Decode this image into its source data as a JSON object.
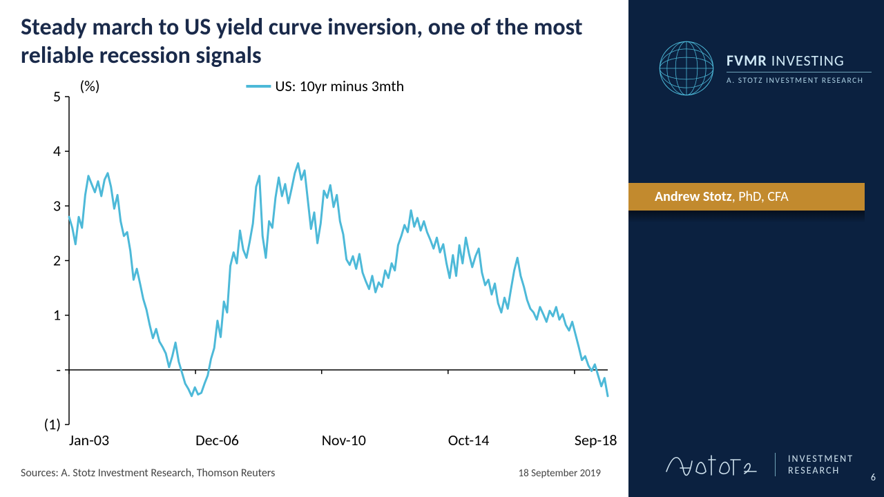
{
  "title": "Steady march to US yield curve inversion, one of the most reliable recession signals",
  "chart": {
    "type": "line",
    "y_axis_label": "(%)",
    "legend_label": "US: 10yr minus 3mth",
    "line_color": "#4db9d8",
    "line_width": 3,
    "axis_color": "#000000",
    "background_color": "#ffffff",
    "ylim": [
      -1,
      5
    ],
    "y_ticks": [
      {
        "value": -1,
        "label": "(1)"
      },
      {
        "value": 0,
        "label": "-"
      },
      {
        "value": 1,
        "label": "1"
      },
      {
        "value": 2,
        "label": "2"
      },
      {
        "value": 3,
        "label": "3"
      },
      {
        "value": 4,
        "label": "4"
      },
      {
        "value": 5,
        "label": "5"
      }
    ],
    "x_domain": [
      2003.0,
      2019.7
    ],
    "x_ticks": [
      {
        "value": 2003.0,
        "label": "Jan-03"
      },
      {
        "value": 2006.92,
        "label": "Dec-06"
      },
      {
        "value": 2010.83,
        "label": "Nov-10"
      },
      {
        "value": 2014.75,
        "label": "Oct-14"
      },
      {
        "value": 2018.67,
        "label": "Sep-18"
      }
    ],
    "series": [
      {
        "x": 2003.0,
        "y": 2.8
      },
      {
        "x": 2003.1,
        "y": 2.6
      },
      {
        "x": 2003.2,
        "y": 2.3
      },
      {
        "x": 2003.3,
        "y": 2.8
      },
      {
        "x": 2003.4,
        "y": 2.6
      },
      {
        "x": 2003.5,
        "y": 3.2
      },
      {
        "x": 2003.6,
        "y": 3.55
      },
      {
        "x": 2003.7,
        "y": 3.4
      },
      {
        "x": 2003.8,
        "y": 3.25
      },
      {
        "x": 2003.9,
        "y": 3.45
      },
      {
        "x": 2004.0,
        "y": 3.18
      },
      {
        "x": 2004.1,
        "y": 3.48
      },
      {
        "x": 2004.2,
        "y": 3.6
      },
      {
        "x": 2004.3,
        "y": 3.35
      },
      {
        "x": 2004.4,
        "y": 2.95
      },
      {
        "x": 2004.5,
        "y": 3.2
      },
      {
        "x": 2004.6,
        "y": 2.72
      },
      {
        "x": 2004.7,
        "y": 2.45
      },
      {
        "x": 2004.8,
        "y": 2.52
      },
      {
        "x": 2004.9,
        "y": 2.18
      },
      {
        "x": 2005.0,
        "y": 1.65
      },
      {
        "x": 2005.1,
        "y": 1.85
      },
      {
        "x": 2005.2,
        "y": 1.58
      },
      {
        "x": 2005.3,
        "y": 1.3
      },
      {
        "x": 2005.4,
        "y": 1.1
      },
      {
        "x": 2005.5,
        "y": 0.82
      },
      {
        "x": 2005.6,
        "y": 0.58
      },
      {
        "x": 2005.7,
        "y": 0.75
      },
      {
        "x": 2005.8,
        "y": 0.52
      },
      {
        "x": 2005.9,
        "y": 0.42
      },
      {
        "x": 2006.0,
        "y": 0.3
      },
      {
        "x": 2006.1,
        "y": 0.05
      },
      {
        "x": 2006.2,
        "y": 0.25
      },
      {
        "x": 2006.3,
        "y": 0.5
      },
      {
        "x": 2006.4,
        "y": 0.15
      },
      {
        "x": 2006.5,
        "y": -0.05
      },
      {
        "x": 2006.6,
        "y": -0.25
      },
      {
        "x": 2006.7,
        "y": -0.35
      },
      {
        "x": 2006.8,
        "y": -0.48
      },
      {
        "x": 2006.9,
        "y": -0.32
      },
      {
        "x": 2007.0,
        "y": -0.45
      },
      {
        "x": 2007.1,
        "y": -0.42
      },
      {
        "x": 2007.2,
        "y": -0.25
      },
      {
        "x": 2007.3,
        "y": -0.1
      },
      {
        "x": 2007.4,
        "y": 0.2
      },
      {
        "x": 2007.5,
        "y": 0.4
      },
      {
        "x": 2007.6,
        "y": 0.9
      },
      {
        "x": 2007.7,
        "y": 0.6
      },
      {
        "x": 2007.8,
        "y": 1.25
      },
      {
        "x": 2007.9,
        "y": 1.05
      },
      {
        "x": 2008.0,
        "y": 1.9
      },
      {
        "x": 2008.1,
        "y": 2.15
      },
      {
        "x": 2008.2,
        "y": 1.95
      },
      {
        "x": 2008.3,
        "y": 2.55
      },
      {
        "x": 2008.4,
        "y": 2.2
      },
      {
        "x": 2008.5,
        "y": 2.05
      },
      {
        "x": 2008.6,
        "y": 2.35
      },
      {
        "x": 2008.7,
        "y": 2.68
      },
      {
        "x": 2008.8,
        "y": 3.35
      },
      {
        "x": 2008.9,
        "y": 3.55
      },
      {
        "x": 2009.0,
        "y": 2.45
      },
      {
        "x": 2009.1,
        "y": 2.05
      },
      {
        "x": 2009.2,
        "y": 2.72
      },
      {
        "x": 2009.3,
        "y": 2.6
      },
      {
        "x": 2009.4,
        "y": 3.15
      },
      {
        "x": 2009.5,
        "y": 3.52
      },
      {
        "x": 2009.6,
        "y": 3.18
      },
      {
        "x": 2009.7,
        "y": 3.4
      },
      {
        "x": 2009.8,
        "y": 3.05
      },
      {
        "x": 2009.9,
        "y": 3.32
      },
      {
        "x": 2010.0,
        "y": 3.6
      },
      {
        "x": 2010.1,
        "y": 3.78
      },
      {
        "x": 2010.2,
        "y": 3.48
      },
      {
        "x": 2010.3,
        "y": 3.65
      },
      {
        "x": 2010.4,
        "y": 3.12
      },
      {
        "x": 2010.5,
        "y": 2.58
      },
      {
        "x": 2010.6,
        "y": 2.88
      },
      {
        "x": 2010.7,
        "y": 2.32
      },
      {
        "x": 2010.8,
        "y": 2.68
      },
      {
        "x": 2010.9,
        "y": 3.28
      },
      {
        "x": 2011.0,
        "y": 3.15
      },
      {
        "x": 2011.1,
        "y": 3.38
      },
      {
        "x": 2011.2,
        "y": 2.98
      },
      {
        "x": 2011.3,
        "y": 3.2
      },
      {
        "x": 2011.4,
        "y": 2.72
      },
      {
        "x": 2011.5,
        "y": 2.48
      },
      {
        "x": 2011.6,
        "y": 2.02
      },
      {
        "x": 2011.7,
        "y": 1.92
      },
      {
        "x": 2011.8,
        "y": 2.08
      },
      {
        "x": 2011.9,
        "y": 1.85
      },
      {
        "x": 2012.0,
        "y": 2.12
      },
      {
        "x": 2012.1,
        "y": 1.78
      },
      {
        "x": 2012.2,
        "y": 1.62
      },
      {
        "x": 2012.3,
        "y": 1.48
      },
      {
        "x": 2012.4,
        "y": 1.72
      },
      {
        "x": 2012.5,
        "y": 1.42
      },
      {
        "x": 2012.6,
        "y": 1.6
      },
      {
        "x": 2012.7,
        "y": 1.52
      },
      {
        "x": 2012.8,
        "y": 1.82
      },
      {
        "x": 2012.9,
        "y": 1.68
      },
      {
        "x": 2013.0,
        "y": 1.95
      },
      {
        "x": 2013.1,
        "y": 1.82
      },
      {
        "x": 2013.2,
        "y": 2.28
      },
      {
        "x": 2013.3,
        "y": 2.45
      },
      {
        "x": 2013.4,
        "y": 2.65
      },
      {
        "x": 2013.5,
        "y": 2.52
      },
      {
        "x": 2013.6,
        "y": 2.92
      },
      {
        "x": 2013.7,
        "y": 2.62
      },
      {
        "x": 2013.8,
        "y": 2.78
      },
      {
        "x": 2013.9,
        "y": 2.55
      },
      {
        "x": 2014.0,
        "y": 2.72
      },
      {
        "x": 2014.1,
        "y": 2.52
      },
      {
        "x": 2014.2,
        "y": 2.38
      },
      {
        "x": 2014.3,
        "y": 2.22
      },
      {
        "x": 2014.4,
        "y": 2.42
      },
      {
        "x": 2014.5,
        "y": 2.15
      },
      {
        "x": 2014.6,
        "y": 2.3
      },
      {
        "x": 2014.7,
        "y": 1.95
      },
      {
        "x": 2014.8,
        "y": 1.68
      },
      {
        "x": 2014.9,
        "y": 2.1
      },
      {
        "x": 2015.0,
        "y": 1.72
      },
      {
        "x": 2015.1,
        "y": 2.28
      },
      {
        "x": 2015.2,
        "y": 1.95
      },
      {
        "x": 2015.3,
        "y": 2.42
      },
      {
        "x": 2015.4,
        "y": 2.12
      },
      {
        "x": 2015.5,
        "y": 1.88
      },
      {
        "x": 2015.6,
        "y": 2.08
      },
      {
        "x": 2015.7,
        "y": 2.22
      },
      {
        "x": 2015.8,
        "y": 1.78
      },
      {
        "x": 2015.9,
        "y": 1.55
      },
      {
        "x": 2016.0,
        "y": 1.65
      },
      {
        "x": 2016.1,
        "y": 1.38
      },
      {
        "x": 2016.2,
        "y": 1.58
      },
      {
        "x": 2016.3,
        "y": 1.22
      },
      {
        "x": 2016.4,
        "y": 1.05
      },
      {
        "x": 2016.5,
        "y": 1.32
      },
      {
        "x": 2016.6,
        "y": 1.12
      },
      {
        "x": 2016.7,
        "y": 1.48
      },
      {
        "x": 2016.8,
        "y": 1.82
      },
      {
        "x": 2016.9,
        "y": 2.05
      },
      {
        "x": 2017.0,
        "y": 1.72
      },
      {
        "x": 2017.1,
        "y": 1.52
      },
      {
        "x": 2017.2,
        "y": 1.28
      },
      {
        "x": 2017.3,
        "y": 1.12
      },
      {
        "x": 2017.4,
        "y": 1.05
      },
      {
        "x": 2017.5,
        "y": 0.92
      },
      {
        "x": 2017.6,
        "y": 1.15
      },
      {
        "x": 2017.7,
        "y": 1.02
      },
      {
        "x": 2017.8,
        "y": 0.88
      },
      {
        "x": 2017.9,
        "y": 1.08
      },
      {
        "x": 2018.0,
        "y": 0.98
      },
      {
        "x": 2018.1,
        "y": 1.15
      },
      {
        "x": 2018.2,
        "y": 0.92
      },
      {
        "x": 2018.3,
        "y": 1.02
      },
      {
        "x": 2018.4,
        "y": 0.82
      },
      {
        "x": 2018.5,
        "y": 0.72
      },
      {
        "x": 2018.6,
        "y": 0.88
      },
      {
        "x": 2018.7,
        "y": 0.65
      },
      {
        "x": 2018.8,
        "y": 0.42
      },
      {
        "x": 2018.9,
        "y": 0.18
      },
      {
        "x": 2019.0,
        "y": 0.25
      },
      {
        "x": 2019.1,
        "y": 0.08
      },
      {
        "x": 2019.2,
        "y": -0.02
      },
      {
        "x": 2019.3,
        "y": 0.1
      },
      {
        "x": 2019.4,
        "y": -0.1
      },
      {
        "x": 2019.5,
        "y": -0.3
      },
      {
        "x": 2019.6,
        "y": -0.15
      },
      {
        "x": 2019.7,
        "y": -0.48
      }
    ]
  },
  "sources": "Sources: A. Stotz Investment Research, Thomson Reuters",
  "date": "18 September  2019",
  "sidebar": {
    "bg": "#0b2140",
    "banner_bg": "#c28a2e",
    "brand": {
      "main_bold": "FVMR",
      "main_light": "INVESTING",
      "sub": "A. STOTZ INVESTMENT RESEARCH",
      "accent": "#4db9d8"
    },
    "author_bold": "Andrew Stotz",
    "author_rest": ", PhD, CFA",
    "footer_line1": "INVESTMENT",
    "footer_line2": "RESEARCH",
    "page": "6"
  }
}
